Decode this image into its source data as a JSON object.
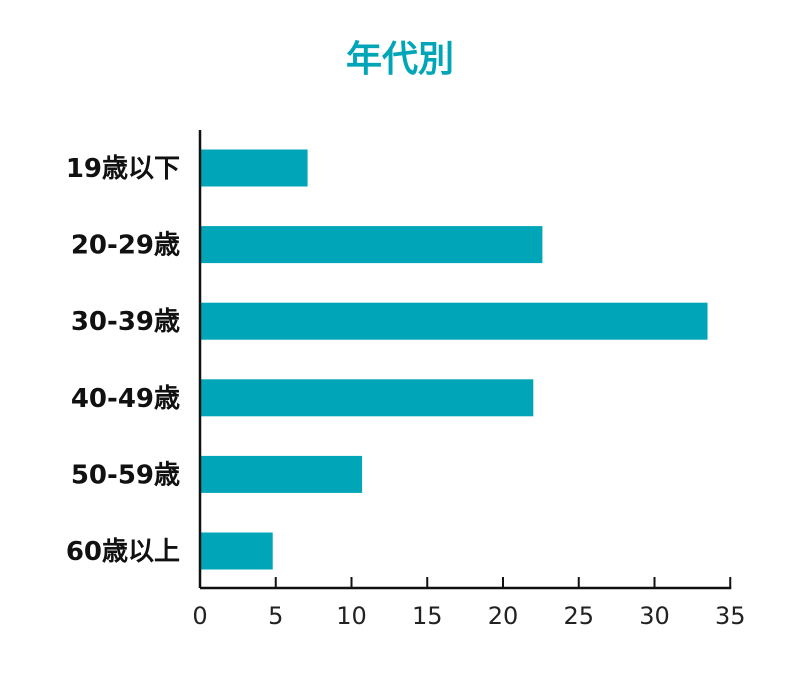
{
  "chart_data": {
    "type": "bar",
    "orientation": "horizontal",
    "title": "年代別",
    "categories": [
      "19歳以下",
      "20-29歳",
      "30-39歳",
      "40-49歳",
      "50-59歳",
      "60歳以上"
    ],
    "values": [
      7.1,
      22.6,
      33.5,
      22.0,
      10.7,
      4.8
    ],
    "x_ticks": [
      0,
      5,
      10,
      15,
      20,
      25,
      30,
      35
    ],
    "xlim": [
      0,
      35
    ],
    "xlabel": "",
    "ylabel": "",
    "grid": false,
    "legend": "none",
    "bar_color": "#00a5b8",
    "title_color": "#00a5b8"
  }
}
